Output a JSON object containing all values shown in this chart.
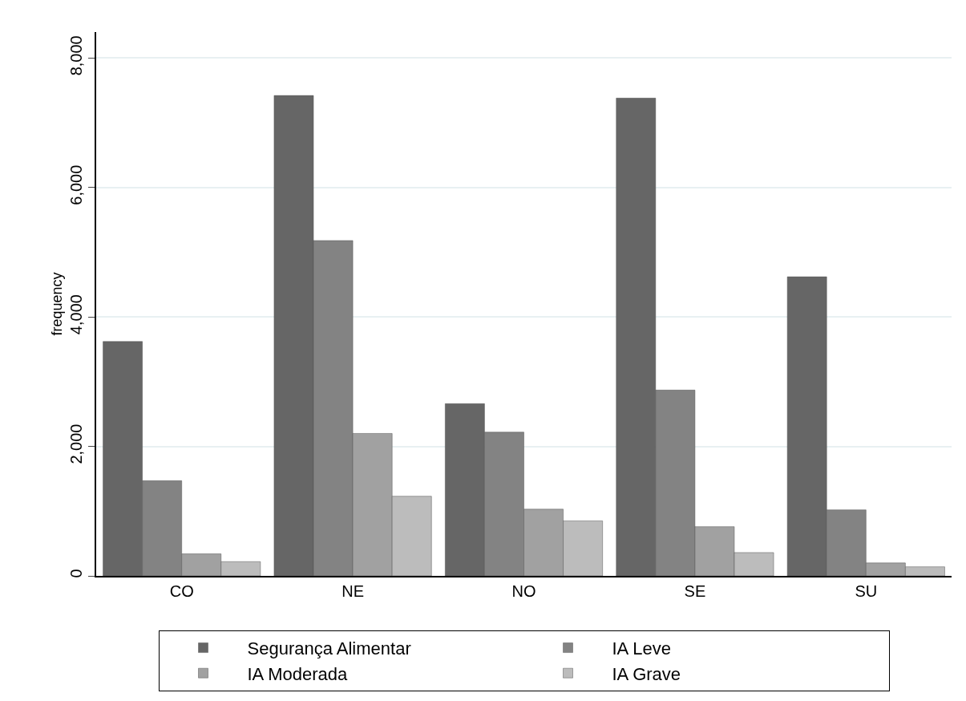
{
  "chart_data": {
    "type": "bar",
    "ylabel": "frequency",
    "categories": [
      "CO",
      "NE",
      "NO",
      "SE",
      "SU"
    ],
    "series": [
      {
        "name": "Segurança Alimentar",
        "color": "#666666",
        "values": [
          3620,
          7420,
          2660,
          7380,
          4620
        ]
      },
      {
        "name": "IA Leve",
        "color": "#838383",
        "values": [
          1470,
          5180,
          2220,
          2870,
          1020
        ]
      },
      {
        "name": "IA Moderada",
        "color": "#a1a1a1",
        "values": [
          340,
          2200,
          1030,
          760,
          200
        ]
      },
      {
        "name": "IA Grave",
        "color": "#bcbcbc",
        "values": [
          220,
          1230,
          850,
          360,
          140
        ]
      }
    ],
    "ylim": [
      0,
      8400
    ],
    "yticks": [
      {
        "value": 0,
        "label": "0"
      },
      {
        "value": 2000,
        "label": "2,000"
      },
      {
        "value": 4000,
        "label": "4,000"
      },
      {
        "value": 6000,
        "label": "6,000"
      },
      {
        "value": 8000,
        "label": "8,000"
      }
    ],
    "grid": "y",
    "legend": "bottom"
  }
}
